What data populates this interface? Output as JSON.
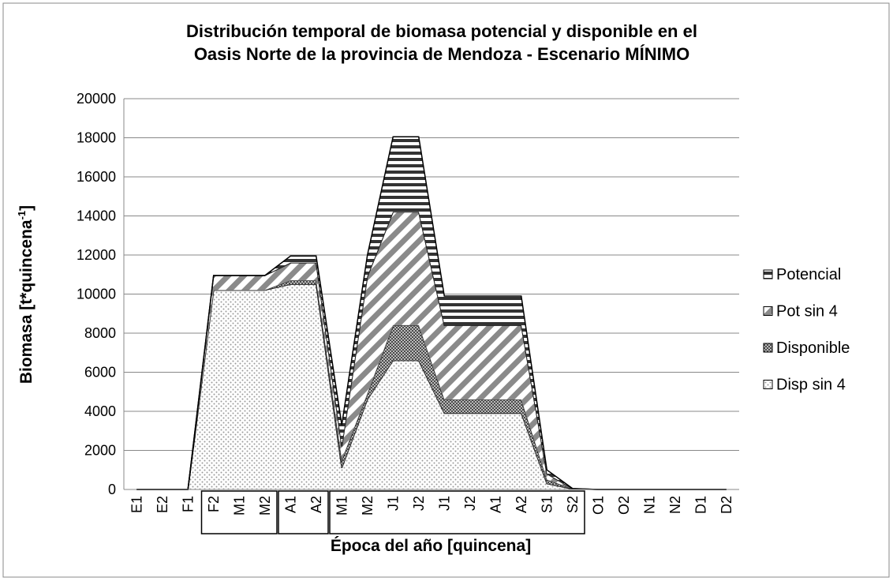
{
  "chart_data": {
    "type": "stacked_area",
    "title": [
      "Distribución temporal de biomasa potencial y disponible en el",
      "Oasis Norte de la provincia de Mendoza - Escenario MÍNIMO"
    ],
    "y_label": [
      "Biomasa  [t*quincena",
      "-1",
      "]"
    ],
    "x_label": "Época del año [quincena]",
    "categories": [
      "E1",
      "E2",
      "F1",
      "F2",
      "M1",
      "M2",
      "A1",
      "A2",
      "M1",
      "M2",
      "J1",
      "J2",
      "J1",
      "J2",
      "A1",
      "A2",
      "S1",
      "S2",
      "O1",
      "O2",
      "N1",
      "N2",
      "D1",
      "D2"
    ],
    "series": [
      {
        "name": "Disp sin 4",
        "color": "#9a9a9a",
        "pattern": "dots",
        "values": [
          0,
          0,
          0,
          10200,
          10200,
          10200,
          10500,
          10500,
          1100,
          4600,
          6600,
          6600,
          3900,
          3900,
          3900,
          3900,
          300,
          20,
          0,
          0,
          0,
          0,
          0,
          0
        ]
      },
      {
        "name": "Disponible",
        "color": "#4a4a4a",
        "pattern": "checker",
        "values": [
          0,
          0,
          0,
          0,
          0,
          0,
          200,
          200,
          400,
          300,
          1800,
          1800,
          700,
          700,
          700,
          700,
          200,
          10,
          0,
          0,
          0,
          0,
          0,
          0
        ]
      },
      {
        "name": "Pot sin 4",
        "color": "#8a8a8a",
        "pattern": "diagonal",
        "values": [
          0,
          0,
          0,
          750,
          750,
          750,
          900,
          900,
          700,
          6000,
          5800,
          5800,
          3800,
          3800,
          3800,
          3800,
          300,
          10,
          0,
          0,
          0,
          0,
          0,
          0
        ]
      },
      {
        "name": "Potencial",
        "color": "#333333",
        "pattern": "horizontal",
        "values": [
          0,
          0,
          0,
          0,
          0,
          0,
          350,
          350,
          1100,
          1100,
          3850,
          3850,
          1500,
          1500,
          1500,
          1500,
          200,
          10,
          0,
          0,
          0,
          0,
          0,
          0
        ]
      }
    ],
    "ylim": [
      0,
      20000
    ],
    "yticks": [
      0,
      2000,
      4000,
      6000,
      8000,
      10000,
      12000,
      14000,
      16000,
      18000,
      20000
    ],
    "grid": true,
    "legend": "right"
  }
}
